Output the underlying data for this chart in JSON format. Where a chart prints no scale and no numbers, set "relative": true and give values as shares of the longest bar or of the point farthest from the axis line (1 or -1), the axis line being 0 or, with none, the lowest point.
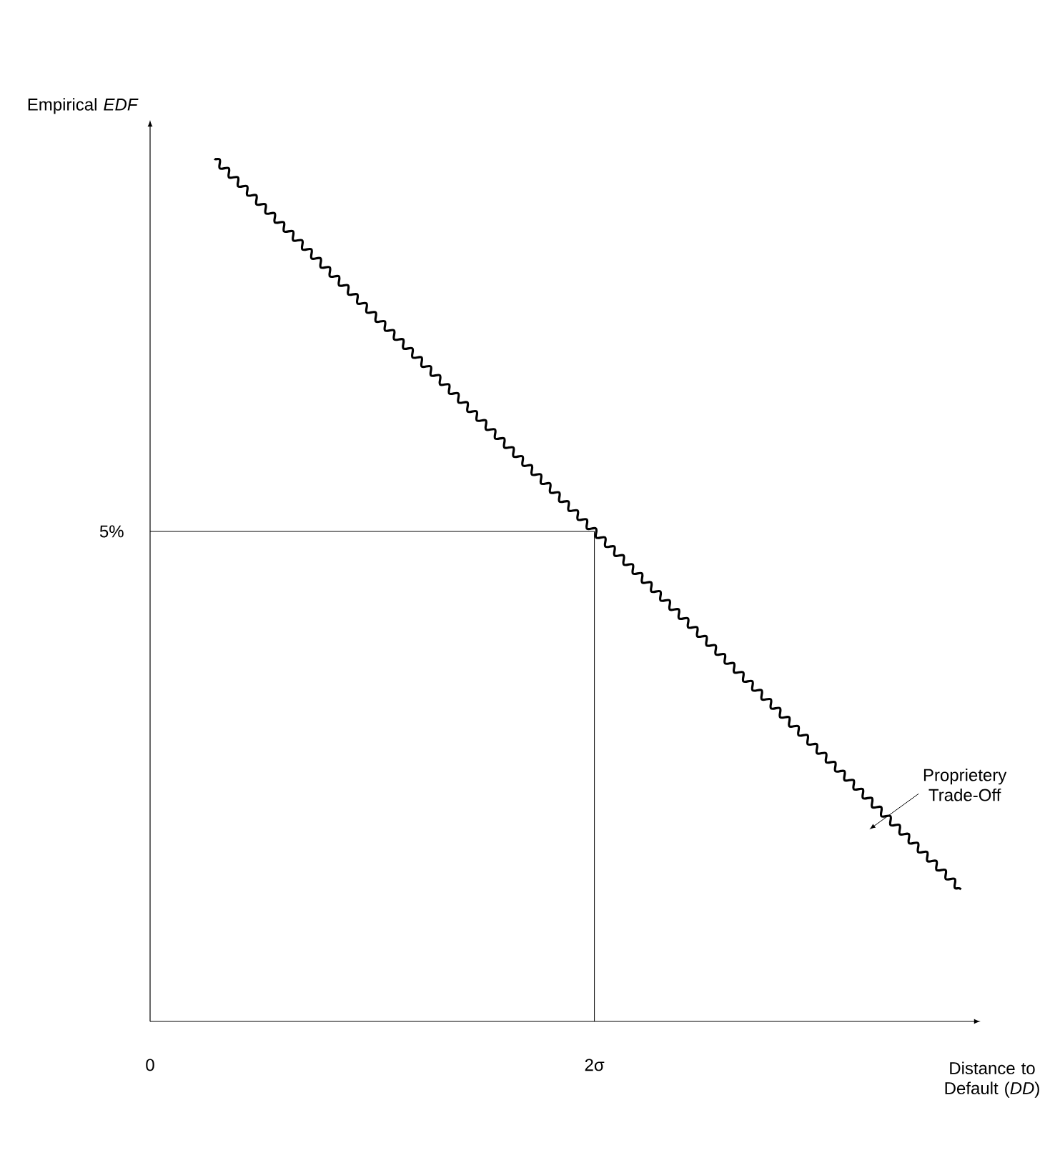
{
  "chart_data": {
    "type": "line",
    "xlabel": "Distance to Default (*DD*)",
    "ylabel": "Empirical *EDF*",
    "relative": true,
    "x": [
      0.29,
      2,
      3.65
    ],
    "series": [
      {
        "color": "#000000",
        "values": [
          1,
          0.568,
          0.153
        ]
      }
    ],
    "xlim": [
      0,
      3.7
    ],
    "xticks": [
      0,
      {
        "value": 2,
        "label": "2σ"
      }
    ],
    "ref_lines": [
      {
        "axis": "x",
        "value": 2,
        "color": "#000000"
      },
      {
        "axis": "y",
        "value": 0.568,
        "color": "#000000"
      }
    ],
    "annotations": [
      "Proprietery Trade-Off",
      "5%"
    ],
    "grid": false,
    "marker": "none",
    "line_style": "solid"
  }
}
